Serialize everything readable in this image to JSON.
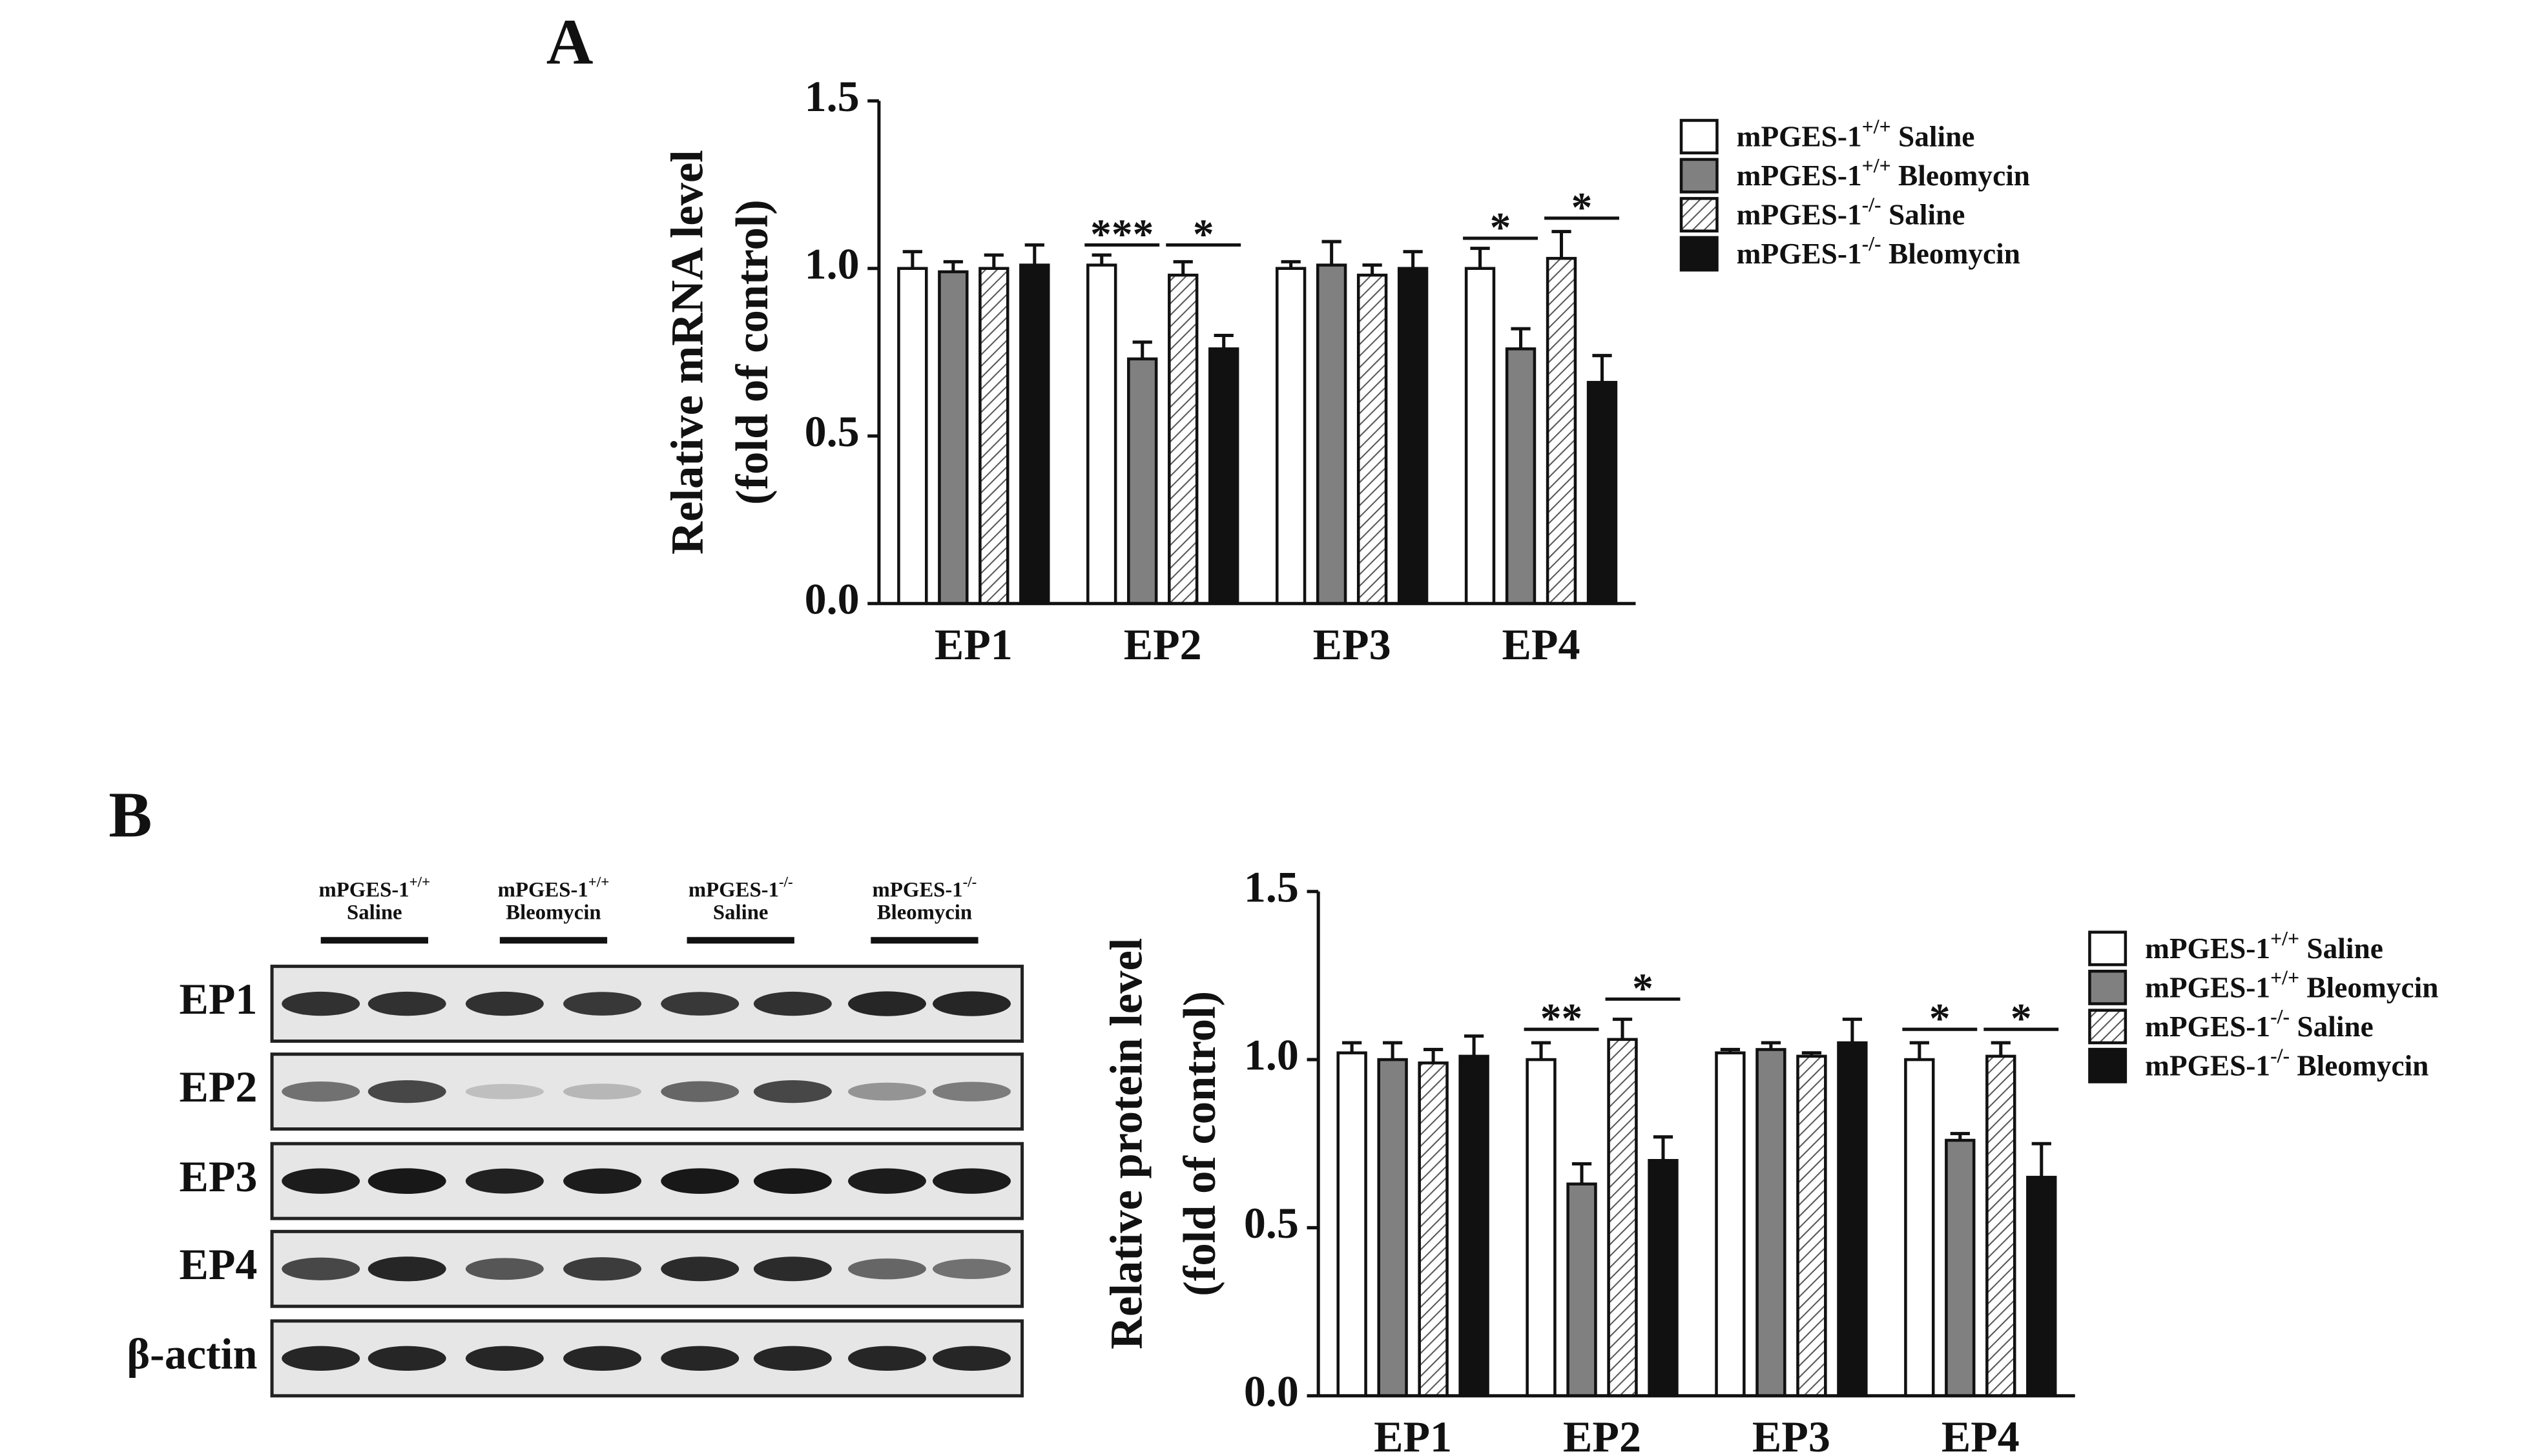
{
  "chart_data": [
    {
      "type": "bar",
      "panel": "A",
      "y_label": [
        "Relative mRNA level",
        "(fold of control)"
      ],
      "categories": [
        "EP1",
        "EP2",
        "EP3",
        "EP4"
      ],
      "series": [
        {
          "name": "mPGES-1+/+ Saline",
          "color": "#ffffff",
          "values": [
            1.0,
            1.01,
            1.0,
            1.0
          ],
          "errors": [
            0.05,
            0.03,
            0.02,
            0.06
          ]
        },
        {
          "name": "mPGES-1+/+ Bleomycin",
          "color": "#808080",
          "values": [
            0.99,
            0.73,
            1.01,
            0.76
          ],
          "errors": [
            0.03,
            0.05,
            0.07,
            0.06
          ]
        },
        {
          "name": "mPGES-1-/- Saline",
          "color": "#ffffff",
          "pattern": "hatch",
          "values": [
            1.0,
            0.98,
            0.98,
            1.03
          ],
          "errors": [
            0.04,
            0.04,
            0.03,
            0.08
          ]
        },
        {
          "name": "mPGES-1-/- Bleomycin",
          "color": "#111111",
          "values": [
            1.01,
            0.76,
            1.0,
            0.66
          ],
          "errors": [
            0.06,
            0.04,
            0.05,
            0.08
          ]
        }
      ],
      "ylim": [
        0,
        1.5
      ],
      "yticks": [
        {
          "value": 0,
          "label": "0.0"
        },
        {
          "value": 0.5,
          "label": "0.5"
        },
        {
          "value": 1,
          "label": "1.0"
        },
        {
          "value": 1.5,
          "label": "1.5"
        }
      ],
      "annotations": [
        {
          "text": "***",
          "x": "EP2",
          "series": [
            0,
            1
          ],
          "y": 1.07
        },
        {
          "text": "*",
          "x": "EP2",
          "series": [
            2,
            3
          ],
          "y": 1.07
        },
        {
          "text": "*",
          "x": "EP4",
          "series": [
            0,
            1
          ],
          "y": 1.09
        },
        {
          "text": "*",
          "x": "EP4",
          "series": [
            2,
            3
          ],
          "y": 1.15
        }
      ],
      "legend": "right"
    },
    {
      "type": "bar",
      "panel": "B",
      "y_label": [
        "Relative protein level",
        "(fold of control)"
      ],
      "categories": [
        "EP1",
        "EP2",
        "EP3",
        "EP4"
      ],
      "series": [
        {
          "name": "mPGES-1+/+ Saline",
          "color": "#ffffff",
          "values": [
            1.02,
            1.0,
            1.02,
            1.0
          ],
          "errors": [
            0.03,
            0.05,
            0.01,
            0.05
          ]
        },
        {
          "name": "mPGES-1+/+ Bleomycin",
          "color": "#808080",
          "values": [
            1.0,
            0.63,
            1.03,
            0.76
          ],
          "errors": [
            0.05,
            0.06,
            0.02,
            0.02
          ]
        },
        {
          "name": "mPGES-1-/- Saline",
          "color": "#ffffff",
          "pattern": "hatch",
          "values": [
            0.99,
            1.06,
            1.01,
            1.01
          ],
          "errors": [
            0.04,
            0.06,
            0.01,
            0.04
          ]
        },
        {
          "name": "mPGES-1-/- Bleomycin",
          "color": "#111111",
          "values": [
            1.01,
            0.7,
            1.05,
            0.65
          ],
          "errors": [
            0.06,
            0.07,
            0.07,
            0.1
          ]
        }
      ],
      "ylim": [
        0,
        1.5
      ],
      "yticks": [
        {
          "value": 0,
          "label": "0.0"
        },
        {
          "value": 0.5,
          "label": "0.5"
        },
        {
          "value": 1,
          "label": "1.0"
        },
        {
          "value": 1.5,
          "label": "1.5"
        }
      ],
      "annotations": [
        {
          "text": "**",
          "x": "EP2",
          "series": [
            0,
            1
          ],
          "y": 1.09
        },
        {
          "text": "*",
          "x": "EP2",
          "series": [
            2,
            3
          ],
          "y": 1.18
        },
        {
          "text": "*",
          "x": "EP4",
          "series": [
            0,
            1
          ],
          "y": 1.09
        },
        {
          "text": "*",
          "x": "EP4",
          "series": [
            2,
            3
          ],
          "y": 1.09
        }
      ],
      "legend": "right"
    }
  ],
  "blot": {
    "columns": [
      [
        "mPGES-1+/+",
        "Saline"
      ],
      [
        "mPGES-1+/+",
        "Bleomycin"
      ],
      [
        "mPGES-1-/-",
        "Saline"
      ],
      [
        "mPGES-1-/-",
        "Bleomycin"
      ]
    ],
    "rows": [
      "EP1",
      "EP2",
      "EP3",
      "EP4",
      "β-actin"
    ]
  }
}
